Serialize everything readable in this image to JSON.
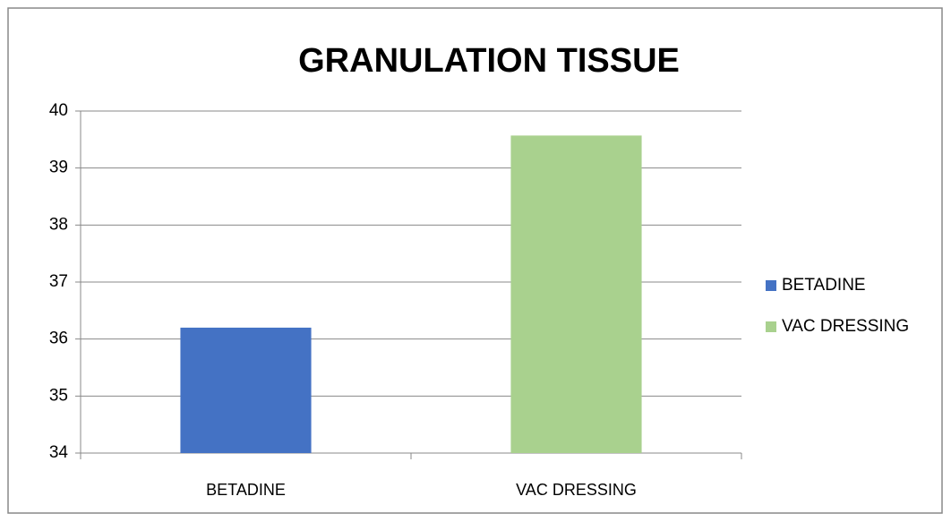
{
  "chart_data": {
    "type": "bar",
    "title": "GRANULATION TISSUE",
    "categories": [
      "BETADINE",
      "VAC DRESSING"
    ],
    "values": [
      36.2,
      39.57
    ],
    "colors": [
      "#4472c4",
      "#a9d18e"
    ],
    "ylim": [
      34,
      40
    ],
    "yticks": [
      34,
      35,
      36,
      37,
      38,
      39,
      40
    ],
    "grid": true,
    "legend": "right"
  }
}
